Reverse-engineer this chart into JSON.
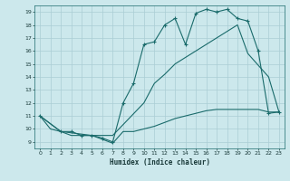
{
  "xlabel": "Humidex (Indice chaleur)",
  "xlim": [
    -0.5,
    23.5
  ],
  "ylim": [
    8.5,
    19.5
  ],
  "xticks": [
    0,
    1,
    2,
    3,
    4,
    5,
    6,
    7,
    8,
    9,
    10,
    11,
    12,
    13,
    14,
    15,
    16,
    17,
    18,
    19,
    20,
    21,
    22,
    23
  ],
  "yticks": [
    9,
    10,
    11,
    12,
    13,
    14,
    15,
    16,
    17,
    18,
    19
  ],
  "bg_color": "#cce8ec",
  "grid_color": "#aacdd4",
  "line_color": "#1a6b6b",
  "line1_x": [
    0,
    1,
    2,
    3,
    4,
    5,
    6,
    7,
    8,
    9,
    10,
    11,
    12,
    13,
    14,
    15,
    16,
    17,
    18,
    19,
    20,
    21,
    22,
    23
  ],
  "line1_y": [
    11.0,
    10.0,
    9.8,
    9.5,
    9.5,
    9.5,
    9.2,
    8.9,
    9.8,
    9.8,
    10.0,
    10.2,
    10.5,
    10.8,
    11.0,
    11.2,
    11.4,
    11.5,
    11.5,
    11.5,
    11.5,
    11.5,
    11.3,
    11.3
  ],
  "line2_x": [
    0,
    2,
    3,
    4,
    5,
    6,
    7,
    8,
    9,
    10,
    11,
    12,
    13,
    14,
    15,
    16,
    17,
    18,
    19,
    20,
    21,
    22,
    23
  ],
  "line2_y": [
    11.0,
    9.8,
    9.8,
    9.5,
    9.5,
    9.3,
    9.0,
    12.0,
    13.5,
    16.5,
    16.7,
    18.0,
    18.5,
    16.5,
    18.9,
    19.2,
    19.0,
    19.2,
    18.5,
    18.3,
    16.0,
    11.2,
    11.3
  ],
  "line3_x": [
    0,
    2,
    5,
    6,
    7,
    10,
    11,
    12,
    13,
    14,
    15,
    16,
    17,
    18,
    19,
    20,
    22,
    23
  ],
  "line3_y": [
    11.0,
    9.8,
    9.5,
    9.5,
    9.5,
    12.0,
    13.5,
    14.2,
    15.0,
    15.5,
    16.0,
    16.5,
    17.0,
    17.5,
    18.0,
    15.8,
    14.0,
    11.3
  ]
}
